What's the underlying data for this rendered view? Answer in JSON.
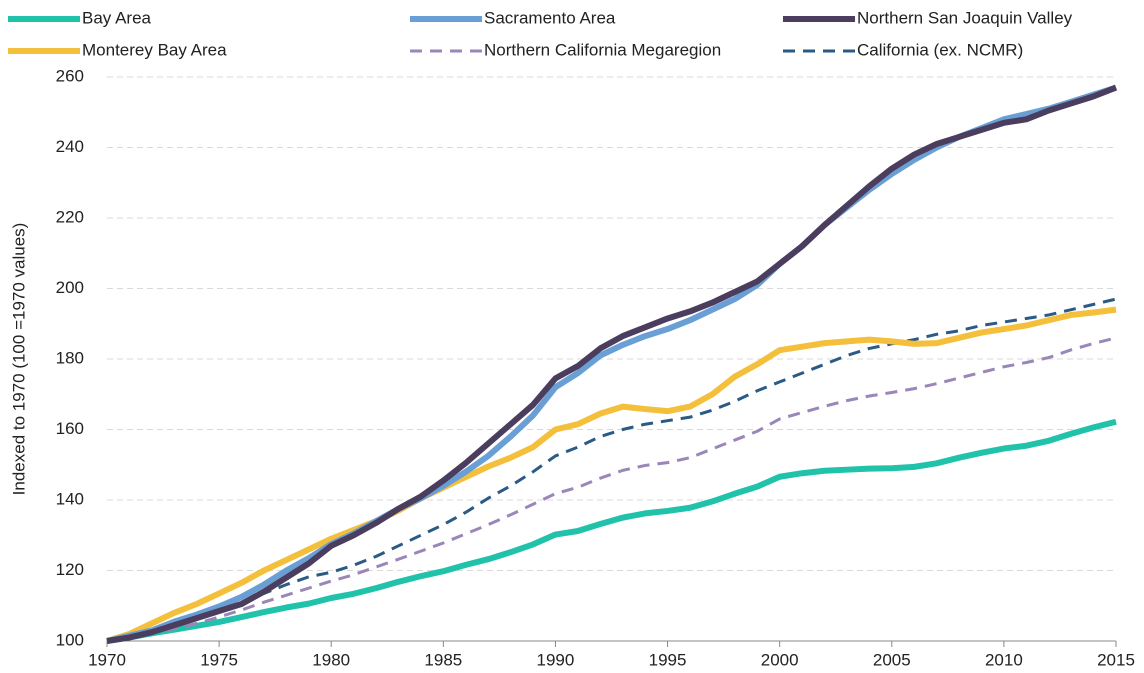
{
  "chart_data": {
    "type": "line",
    "y_axis_label": "Indexed to 1970 (100 =1970 values)",
    "x": [
      1970,
      1971,
      1972,
      1973,
      1974,
      1975,
      1976,
      1977,
      1978,
      1979,
      1980,
      1981,
      1982,
      1983,
      1984,
      1985,
      1986,
      1987,
      1988,
      1989,
      1990,
      1991,
      1992,
      1993,
      1994,
      1995,
      1996,
      1997,
      1998,
      1999,
      2000,
      2001,
      2002,
      2003,
      2004,
      2005,
      2006,
      2007,
      2008,
      2009,
      2010,
      2011,
      2012,
      2013,
      2014,
      2015
    ],
    "xlim": [
      1970,
      2015
    ],
    "xticks": [
      1970,
      1975,
      1980,
      1985,
      1990,
      1995,
      2000,
      2005,
      2010,
      2015
    ],
    "ylim": [
      100,
      260
    ],
    "yticks": [
      100,
      120,
      140,
      160,
      180,
      200,
      220,
      240,
      260
    ],
    "grid": true,
    "legend": "top",
    "series": [
      {
        "name": "Bay Area",
        "color": "#21c2aa",
        "line_style": "solid",
        "values": [
          100,
          101,
          102.2,
          103.2,
          104.3,
          105.4,
          106.8,
          108.2,
          109.5,
          110.6,
          112.2,
          113.4,
          115,
          116.8,
          118.4,
          119.8,
          121.6,
          123.2,
          125.2,
          127.4,
          130.2,
          131.2,
          133.2,
          135,
          136.2,
          136.9,
          137.8,
          139.6,
          141.8,
          143.8,
          146.6,
          147.6,
          148.3,
          148.6,
          148.9,
          149,
          149.4,
          150.4,
          152,
          153.4,
          154.6,
          155.4,
          156.8,
          158.8,
          160.6,
          162.2
        ]
      },
      {
        "name": "Sacramento Area",
        "color": "#6a9fd6",
        "line_style": "solid",
        "values": [
          100,
          101.5,
          103,
          105.5,
          107.5,
          109.8,
          112.5,
          116,
          120,
          123.5,
          127.5,
          130.5,
          134,
          137.5,
          140.5,
          144,
          148,
          152.5,
          158,
          164,
          172,
          176,
          181,
          184,
          186.5,
          188.5,
          191,
          194,
          197,
          201,
          207,
          212,
          218,
          223,
          228,
          232.5,
          236.5,
          240,
          243,
          245.5,
          248,
          249.5,
          251,
          253,
          255,
          257
        ]
      },
      {
        "name": "Northern San Joaquin Valley",
        "color": "#4b3d5e",
        "line_style": "solid",
        "values": [
          100,
          101,
          102.5,
          104.5,
          106.5,
          108.5,
          110.5,
          114,
          118,
          122,
          127,
          130,
          133.5,
          137.5,
          141,
          145.5,
          150.5,
          156,
          161.5,
          167,
          174.5,
          178,
          183,
          186.5,
          189,
          191.5,
          193.5,
          196,
          199,
          202,
          207,
          212,
          218,
          223.5,
          229,
          234,
          238,
          241,
          243,
          245,
          247,
          248,
          250.5,
          252.5,
          254.5,
          257
        ]
      },
      {
        "name": "Monterey Bay Area",
        "color": "#f4bf3a",
        "line_style": "solid",
        "values": [
          100,
          102,
          105,
          108,
          110.5,
          113.5,
          116.5,
          120,
          123,
          126,
          129,
          131.5,
          134,
          137,
          140.5,
          143.5,
          146.5,
          149.5,
          152,
          155,
          160,
          161.5,
          164.5,
          166.5,
          165.8,
          165.2,
          166.5,
          170,
          175,
          178.5,
          182.5,
          183.5,
          184.5,
          185,
          185.5,
          185,
          184.3,
          184.5,
          186,
          187.5,
          188.5,
          189.5,
          191,
          192.5,
          193.2,
          194
        ]
      },
      {
        "name": "Northern California Megaregion",
        "color": "#9a86b8",
        "line_style": "dashed",
        "values": [
          100,
          101,
          102.2,
          103.5,
          105,
          106.8,
          108.8,
          111,
          113,
          115,
          117,
          118.8,
          121,
          123.2,
          125.5,
          127.8,
          130.4,
          133,
          135.8,
          138.8,
          141.8,
          143.6,
          146.2,
          148.4,
          149.8,
          150.6,
          152,
          154.5,
          157,
          159.5,
          163,
          164.8,
          166.6,
          168.2,
          169.5,
          170.5,
          171.6,
          173,
          174.6,
          176.2,
          177.8,
          179,
          180.4,
          182.6,
          184.4,
          186
        ]
      },
      {
        "name": "California (ex. NCMR)",
        "color": "#2a5a86",
        "line_style": "dashed",
        "values": [
          100,
          101.5,
          103,
          104.5,
          106.5,
          108.5,
          111,
          113.5,
          116,
          118.2,
          119.5,
          121.5,
          124,
          127,
          130,
          133,
          136.5,
          140.5,
          144,
          148,
          152.5,
          155,
          158,
          160,
          161.5,
          162.5,
          163.5,
          165.5,
          168,
          171,
          173.5,
          176,
          178.5,
          181,
          183,
          184.3,
          185.5,
          187,
          188,
          189.5,
          190.5,
          191.5,
          192.5,
          194,
          195.5,
          197
        ]
      }
    ]
  }
}
